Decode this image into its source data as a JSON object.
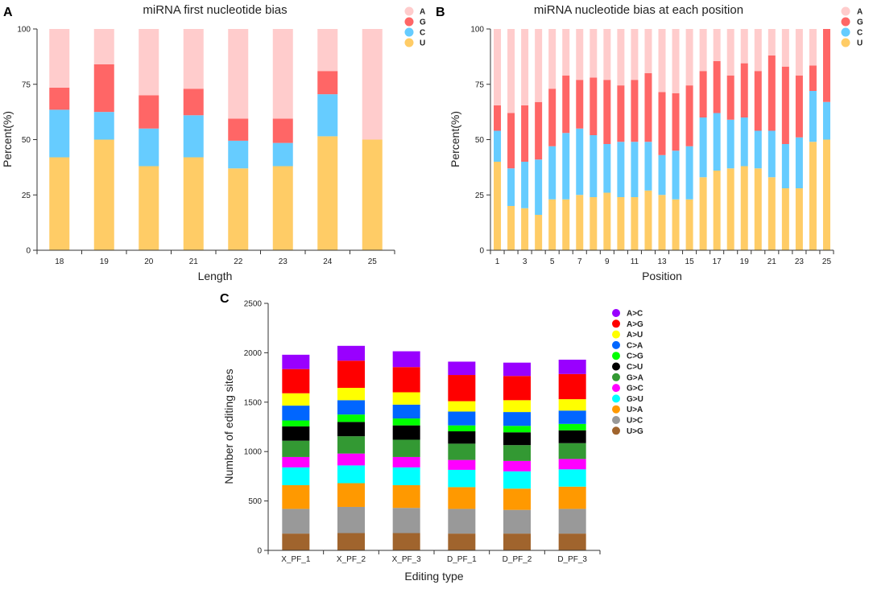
{
  "panels": [
    {
      "id": "A",
      "letter": "A"
    },
    {
      "id": "B",
      "letter": "B"
    },
    {
      "id": "C",
      "letter": "C"
    }
  ],
  "chart_data": [
    {
      "id": "A",
      "type": "stacked-bar",
      "title": "miRNA first nucleotide bias",
      "xlabel": "Length",
      "ylabel": "Percent(%)",
      "ylim": [
        0,
        100
      ],
      "yticks": [
        0,
        25,
        50,
        75,
        100
      ],
      "categories": [
        "18",
        "19",
        "20",
        "21",
        "22",
        "23",
        "24",
        "25"
      ],
      "xtick_labels": [
        "18",
        "19",
        "20",
        "21",
        "22",
        "23",
        "24",
        "25"
      ],
      "grid": false,
      "legend_position": "top-right",
      "stack_order": "bottom-to-top",
      "series": [
        {
          "name": "U",
          "color": "#FFCC66",
          "values": [
            42,
            50,
            38,
            42,
            37,
            38,
            51.5,
            50
          ]
        },
        {
          "name": "C",
          "color": "#66CCFF",
          "values": [
            21.5,
            12.5,
            17,
            19,
            12.5,
            10.5,
            19,
            0
          ]
        },
        {
          "name": "G",
          "color": "#FF6666",
          "values": [
            10,
            21.5,
            15,
            12,
            10,
            11,
            10.5,
            0
          ]
        },
        {
          "name": "A",
          "color": "#FFCCCC",
          "values": [
            26.5,
            16,
            30,
            27,
            40.5,
            40.5,
            19,
            50
          ]
        }
      ],
      "legend": [
        "A",
        "G",
        "C",
        "U"
      ]
    },
    {
      "id": "B",
      "type": "stacked-bar",
      "title": "miRNA nucleotide bias at each position",
      "xlabel": "Position",
      "ylabel": "Percent(%)",
      "ylim": [
        0,
        100
      ],
      "yticks": [
        0,
        25,
        50,
        75,
        100
      ],
      "categories": [
        "1",
        "2",
        "3",
        "4",
        "5",
        "6",
        "7",
        "8",
        "9",
        "10",
        "11",
        "12",
        "13",
        "14",
        "15",
        "16",
        "17",
        "18",
        "19",
        "20",
        "21",
        "22",
        "23",
        "24",
        "25"
      ],
      "xtick_labels": [
        "1",
        "",
        "3",
        "",
        "5",
        "",
        "7",
        "",
        "9",
        "",
        "11",
        "",
        "13",
        "",
        "15",
        "",
        "17",
        "",
        "19",
        "",
        "21",
        "",
        "23",
        "",
        "25"
      ],
      "grid": false,
      "legend_position": "top-right",
      "stack_order": "bottom-to-top",
      "series": [
        {
          "name": "U",
          "color": "#FFCC66",
          "values": [
            40,
            20,
            19,
            16,
            23,
            23,
            25,
            24,
            26,
            24,
            24,
            27,
            25,
            23,
            23,
            33,
            36,
            37,
            38,
            37,
            33,
            28,
            28,
            49,
            50
          ]
        },
        {
          "name": "C",
          "color": "#66CCFF",
          "values": [
            14,
            17,
            21,
            25,
            24,
            30,
            30,
            28,
            22,
            25,
            25,
            22,
            18,
            22,
            24,
            27,
            26,
            22,
            22,
            17,
            21,
            20,
            23,
            23,
            17
          ]
        },
        {
          "name": "G",
          "color": "#FF6666",
          "values": [
            11.5,
            25,
            25.5,
            26,
            26,
            26,
            22,
            26,
            29,
            25.5,
            28,
            31,
            28.5,
            26,
            27.5,
            21,
            23.5,
            20,
            24.5,
            27,
            34,
            35,
            28,
            11.5,
            33
          ]
        },
        {
          "name": "A",
          "color": "#FFCCCC",
          "values": [
            34.5,
            38,
            34.5,
            33,
            27,
            21,
            23,
            22,
            23,
            25.5,
            23,
            20,
            28.5,
            29,
            25.5,
            19,
            14.5,
            21,
            15.5,
            19,
            12,
            17,
            21,
            16.5,
            0
          ]
        }
      ],
      "legend": [
        "A",
        "G",
        "C",
        "U"
      ]
    },
    {
      "id": "C",
      "type": "stacked-bar",
      "title": "",
      "xlabel": "Editing type",
      "ylabel": "Number of editing sites",
      "ylim": [
        0,
        2500
      ],
      "yticks": [
        0,
        500,
        1000,
        1500,
        2000,
        2500
      ],
      "categories": [
        "X_PF_1",
        "X_PF_2",
        "X_PF_3",
        "D_PF_1",
        "D_PF_2",
        "D_PF_3"
      ],
      "xtick_labels": [
        "X_PF_1",
        "X_PF_2",
        "X_PF_3",
        "D_PF_1",
        "D_PF_2",
        "D_PF_3"
      ],
      "grid": false,
      "legend_position": "right",
      "stack_order": "bottom-to-top",
      "series": [
        {
          "name": "U>G",
          "color": "#A0642D",
          "values": [
            170,
            175,
            175,
            170,
            170,
            170
          ]
        },
        {
          "name": "U>C",
          "color": "#999999",
          "values": [
            250,
            265,
            255,
            250,
            240,
            250
          ]
        },
        {
          "name": "U>A",
          "color": "#FF9900",
          "values": [
            240,
            240,
            230,
            220,
            215,
            225
          ]
        },
        {
          "name": "G>U",
          "color": "#00FFFF",
          "values": [
            180,
            180,
            180,
            175,
            175,
            175
          ]
        },
        {
          "name": "G>C",
          "color": "#FF00FF",
          "values": [
            105,
            120,
            105,
            100,
            105,
            105
          ]
        },
        {
          "name": "G>A",
          "color": "#339933",
          "values": [
            165,
            175,
            175,
            165,
            160,
            160
          ]
        },
        {
          "name": "C>U",
          "color": "#000000",
          "values": [
            145,
            145,
            145,
            125,
            130,
            130
          ]
        },
        {
          "name": "C>G",
          "color": "#00FF00",
          "values": [
            60,
            75,
            70,
            60,
            65,
            65
          ]
        },
        {
          "name": "C>A",
          "color": "#0066FF",
          "values": [
            150,
            145,
            140,
            140,
            140,
            135
          ]
        },
        {
          "name": "A>U",
          "color": "#FFFF00",
          "values": [
            125,
            125,
            125,
            105,
            120,
            115
          ]
        },
        {
          "name": "A>G",
          "color": "#FF0000",
          "values": [
            245,
            275,
            255,
            265,
            245,
            255
          ]
        },
        {
          "name": "A>C",
          "color": "#9900FF",
          "values": [
            145,
            150,
            160,
            135,
            135,
            145
          ]
        }
      ],
      "legend": [
        "A>C",
        "A>G",
        "A>U",
        "C>A",
        "C>G",
        "C>U",
        "G>A",
        "G>C",
        "G>U",
        "U>A",
        "U>C",
        "U>G"
      ]
    }
  ]
}
